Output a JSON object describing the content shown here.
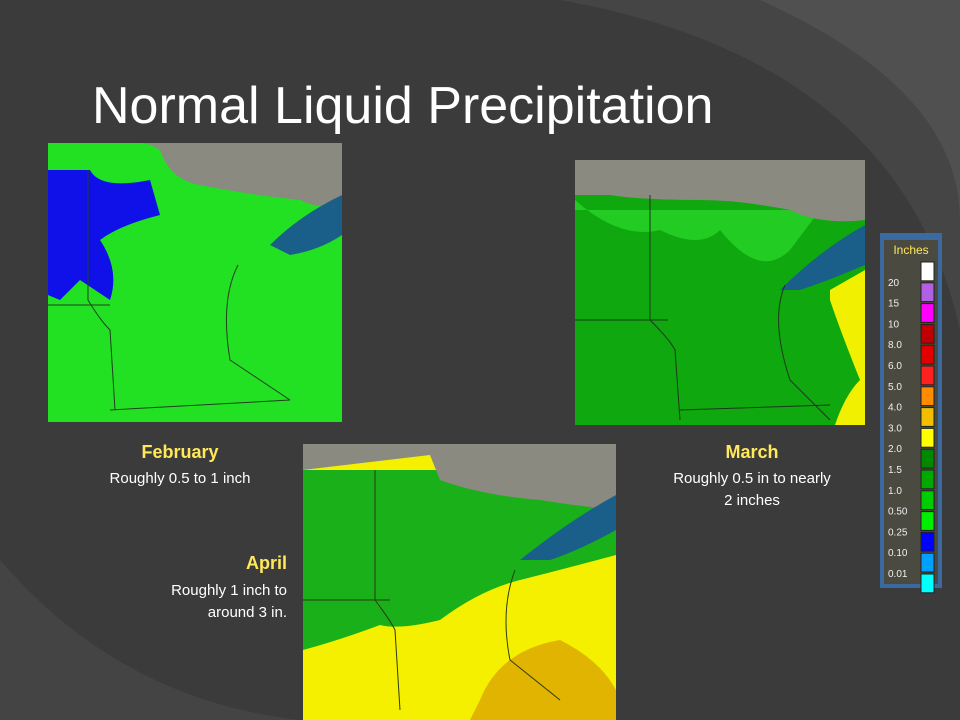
{
  "title": "Normal Liquid Precipitation",
  "maps": [
    {
      "month": "February",
      "lines": [
        "Roughly 0.5 to 1 inch"
      ]
    },
    {
      "month": "March",
      "lines": [
        "Roughly 0.5 in to nearly",
        "2 inches"
      ]
    },
    {
      "month": "April",
      "lines": [
        "Roughly 1 inch to",
        "around 3 in."
      ]
    }
  ],
  "legend": {
    "title": "Inches",
    "labels": [
      "20",
      "15",
      "10",
      "8.0",
      "6.0",
      "5.0",
      "4.0",
      "3.0",
      "2.0",
      "1.5",
      "1.0",
      "0.50",
      "0.25",
      "0.10",
      "0.01"
    ]
  }
}
